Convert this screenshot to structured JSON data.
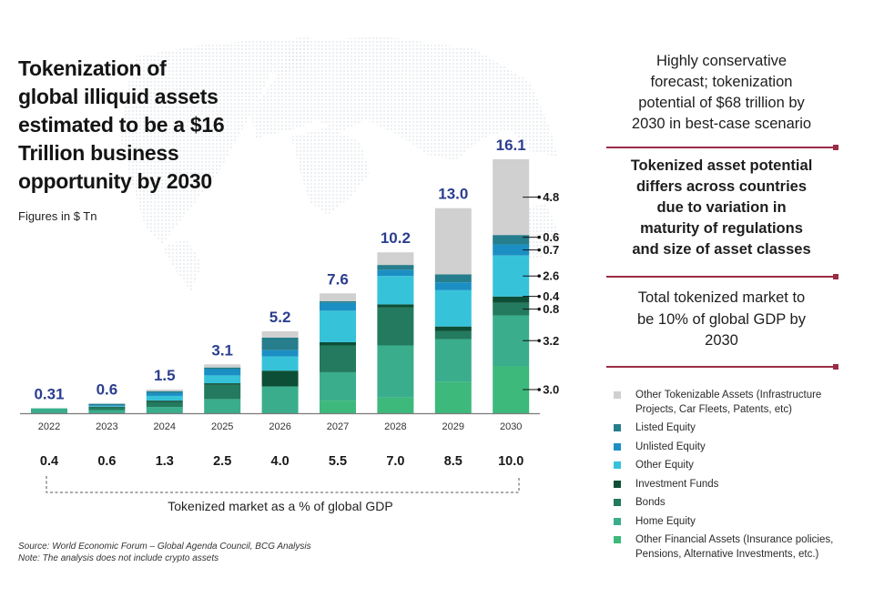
{
  "title": "Tokenization of\nglobal illiquid assets\nestimated to be a $16\nTrillion business\nopportunity by 2030",
  "units_note": "Figures in $ Tn",
  "gdp_caption": "Tokenized market as a % of global GDP",
  "source_line": "Source:  World Economic Forum – Global Agenda Council, BCG Analysis",
  "note_line": "Note:  The analysis does not include crypto assets",
  "side_panel": {
    "block1": "Highly conservative\nforecast; tokenization\npotential of $68 trillion by\n2030 in best-case scenario",
    "block2": "Tokenized asset potential\ndiffers across countries\ndue to variation in\nmaturity of regulations\nand size of asset classes",
    "block3": "Total tokenized market to\nbe 10% of global GDP  by\n2030",
    "divider_color": "#9b2c46"
  },
  "chart_data": {
    "type": "bar",
    "stacked": true,
    "title": "Tokenization of global illiquid assets estimated to be a $16 Trillion business opportunity by 2030",
    "xlabel": "",
    "ylabel": "$ Tn",
    "grid": false,
    "legend_position": "right",
    "categories": [
      "2022",
      "2023",
      "2024",
      "2025",
      "2026",
      "2027",
      "2028",
      "2029",
      "2030"
    ],
    "total_labels": [
      "0.31",
      "0.6",
      "1.5",
      "3.1",
      "5.2",
      "7.6",
      "10.2",
      "13.0",
      "16.1"
    ],
    "totals": [
      0.31,
      0.6,
      1.5,
      3.1,
      5.2,
      7.6,
      10.2,
      13.0,
      16.1
    ],
    "total_label_color": "#2c3e8f",
    "gdp_percent_labels": [
      "0.4",
      "0.6",
      "1.3",
      "2.5",
      "4.0",
      "5.5",
      "7.0",
      "8.5",
      "10.0"
    ],
    "series": [
      {
        "name": "Other Tokenizable Assets (Infrastructure Projects, Car Fleets, Patents, etc)",
        "color": "#d0d0d0",
        "values": [
          0,
          0,
          0.1,
          0.2,
          0.4,
          0.5,
          0.8,
          4.2,
          4.8
        ]
      },
      {
        "name": "Listed Equity",
        "color": "#267d8c",
        "values": [
          0,
          0.1,
          0.1,
          0.1,
          0.8,
          0.1,
          0.3,
          0.5,
          0.6
        ]
      },
      {
        "name": "Unlisted Equity",
        "color": "#1b8fc4",
        "values": [
          0,
          0.05,
          0.2,
          0.4,
          0.4,
          0.5,
          0.4,
          0.5,
          0.7
        ]
      },
      {
        "name": "Other Equity",
        "color": "#36c3da",
        "values": [
          0,
          0.05,
          0.3,
          0.5,
          0.9,
          2.0,
          1.8,
          2.3,
          2.6
        ]
      },
      {
        "name": "Investment Funds",
        "color": "#0d4f36",
        "values": [
          0,
          0.05,
          0.1,
          0.1,
          1.0,
          0.2,
          0.2,
          0.3,
          0.4
        ]
      },
      {
        "name": "Bonds",
        "color": "#237a5e",
        "values": [
          0,
          0.15,
          0.3,
          0.9,
          0,
          1.7,
          2.4,
          0.5,
          0.8
        ]
      },
      {
        "name": "Home Equity",
        "color": "#3aad8c",
        "values": [
          0.31,
          0.2,
          0.4,
          0.9,
          1.7,
          1.8,
          3.3,
          2.7,
          3.2
        ]
      },
      {
        "name": "Other Financial Assets (Insurance policies, Pensions, Alternative Investments, etc.)",
        "color": "#3db97c",
        "values": [
          0,
          0,
          0,
          0,
          0,
          0.8,
          1.0,
          2.0,
          3.0
        ]
      }
    ],
    "annotations": {
      "category": "2030",
      "labels": [
        "4.8",
        "0.6",
        "0.7",
        "2.6",
        "0.4",
        "0.8",
        "3.2",
        "3.0"
      ]
    }
  }
}
